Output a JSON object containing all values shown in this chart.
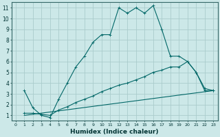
{
  "xlabel": "Humidex (Indice chaleur)",
  "bg_color": "#cce8e8",
  "grid_color": "#aacccc",
  "line_color": "#006666",
  "xlim": [
    -0.5,
    23.5
  ],
  "ylim": [
    0.5,
    11.5
  ],
  "xticks": [
    0,
    1,
    2,
    3,
    4,
    5,
    6,
    7,
    8,
    9,
    10,
    11,
    12,
    13,
    14,
    15,
    16,
    17,
    18,
    19,
    20,
    21,
    22,
    23
  ],
  "yticks": [
    1,
    2,
    3,
    4,
    5,
    6,
    7,
    8,
    9,
    10,
    11
  ],
  "line1_x": [
    1,
    2,
    3,
    4,
    5,
    6,
    7,
    8,
    9,
    10,
    11,
    12,
    13,
    14,
    15,
    16,
    17,
    18,
    19,
    20,
    21,
    22,
    23
  ],
  "line1_y": [
    3.3,
    1.7,
    1.0,
    0.8,
    2.5,
    4.0,
    5.5,
    6.5,
    7.8,
    8.5,
    8.5,
    11.0,
    10.5,
    11.0,
    10.5,
    11.2,
    9.0,
    6.5,
    6.5,
    6.0,
    5.0,
    3.3,
    3.3
  ],
  "line2_x": [
    1,
    2,
    3,
    4,
    5,
    6,
    7,
    8,
    9,
    10,
    11,
    12,
    13,
    14,
    15,
    16,
    17,
    18,
    19,
    20,
    21,
    22,
    23
  ],
  "line2_y": [
    1.2,
    1.2,
    1.1,
    1.0,
    1.5,
    1.8,
    2.2,
    2.5,
    2.8,
    3.2,
    3.5,
    3.8,
    4.0,
    4.3,
    4.6,
    5.0,
    5.2,
    5.5,
    5.5,
    6.0,
    5.0,
    3.5,
    3.3
  ],
  "line3_x": [
    1,
    23
  ],
  "line3_y": [
    1.0,
    3.3
  ]
}
